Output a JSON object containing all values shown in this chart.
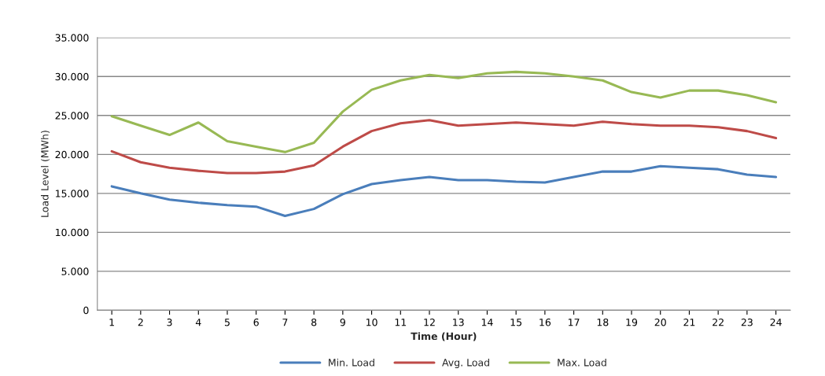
{
  "chart_data": {
    "type": "line",
    "xlabel": "Time (Hour)",
    "ylabel": "Load Level (MWh)",
    "categories": [
      "1",
      "2",
      "3",
      "4",
      "5",
      "6",
      "7",
      "8",
      "9",
      "10",
      "11",
      "12",
      "13",
      "14",
      "15",
      "16",
      "17",
      "18",
      "19",
      "20",
      "21",
      "22",
      "23",
      "24"
    ],
    "series": [
      {
        "name": "Min. Load",
        "color": "#4a7ebb",
        "values": [
          15900,
          15000,
          14200,
          13800,
          13500,
          13300,
          12100,
          13000,
          14900,
          16200,
          16700,
          17100,
          16700,
          16700,
          16500,
          16400,
          17100,
          17800,
          17800,
          18500,
          18300,
          18100,
          17400,
          17100
        ]
      },
      {
        "name": "Avg. Load",
        "color": "#be4b48",
        "values": [
          20400,
          19000,
          18300,
          17900,
          17600,
          17600,
          17800,
          18600,
          21000,
          23000,
          24000,
          24400,
          23700,
          23900,
          24100,
          23900,
          23700,
          24200,
          23900,
          23700,
          23700,
          23500,
          23000,
          22100
        ]
      },
      {
        "name": "Max. Load",
        "color": "#98b954",
        "values": [
          24900,
          23700,
          22500,
          24100,
          21700,
          21000,
          20300,
          21500,
          25500,
          28300,
          29500,
          30200,
          29800,
          30400,
          30600,
          30400,
          30000,
          29500,
          28000,
          27300,
          28200,
          28200,
          27600,
          26700
        ]
      }
    ],
    "ylim": [
      0,
      35000
    ],
    "yticks": [
      0,
      {
        "value": 5000,
        "label": "5.000"
      },
      {
        "value": 10000,
        "label": "10.000"
      },
      {
        "value": 15000,
        "label": "15.000"
      },
      {
        "value": 20000,
        "label": "20.000"
      },
      {
        "value": 25000,
        "label": "25.000"
      },
      {
        "value": 30000,
        "label": "30.000"
      },
      {
        "value": 35000,
        "label": "35.000"
      }
    ],
    "grid": "y",
    "legend": "bottom",
    "marker": "none",
    "line_style": "solid"
  }
}
